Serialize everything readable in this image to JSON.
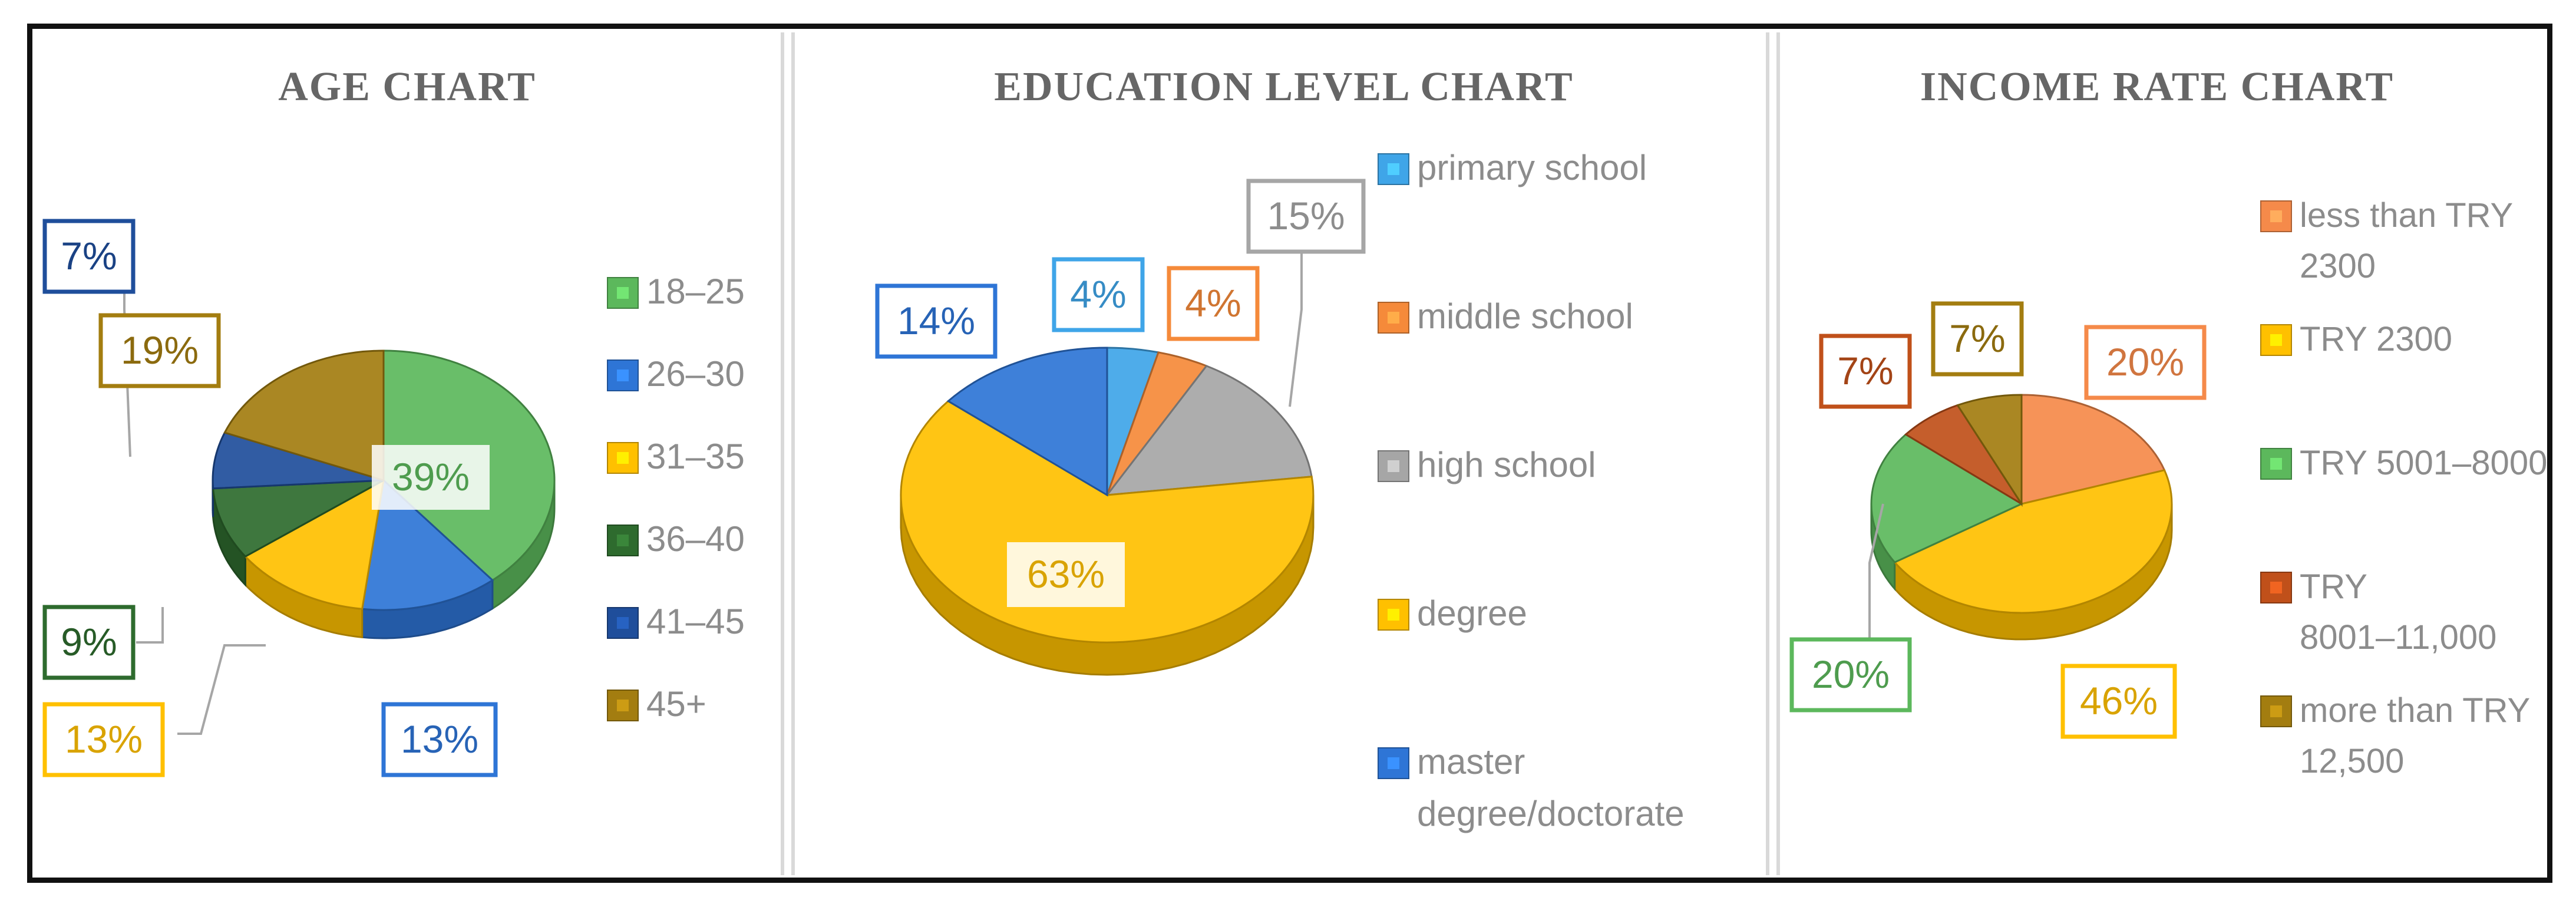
{
  "chart_data": [
    {
      "type": "pie",
      "title": "AGE CHART",
      "categories": [
        "18–25",
        "26–30",
        "31–35",
        "36–40",
        "41–45",
        "45+"
      ],
      "values": [
        39,
        13,
        13,
        9,
        7,
        19
      ],
      "labels": [
        "39%",
        "13%",
        "13%",
        "9%",
        "7%",
        "19%"
      ],
      "colors": [
        "#5cb85c",
        "#2e75d6",
        "#ffc000",
        "#2e6b2e",
        "#1f4e9b",
        "#a37d10"
      ],
      "legend_position": "right"
    },
    {
      "type": "pie",
      "title": "EDUCATION LEVEL CHART",
      "categories": [
        "primary school",
        "middle school",
        "high school",
        "degree",
        "master degree/doctorate"
      ],
      "values": [
        4,
        4,
        15,
        63,
        14
      ],
      "labels": [
        "4%",
        "4%",
        "15%",
        "63%",
        "14%"
      ],
      "colors": [
        "#3fa5e8",
        "#f58a3a",
        "#a6a6a6",
        "#ffc000",
        "#2e75d6"
      ],
      "legend_position": "right"
    },
    {
      "type": "pie",
      "title": "INCOME RATE CHART",
      "categories": [
        "less than TRY 2300",
        "TRY 2300",
        "TRY 5001–8000",
        "TRY 8001–11,000",
        "more than TRY 12,500"
      ],
      "values": [
        20,
        46,
        20,
        7,
        7
      ],
      "labels": [
        "20%",
        "46%",
        "20%",
        "7%",
        "7%"
      ],
      "colors": [
        "#f58a4a",
        "#ffc000",
        "#5cb85c",
        "#c0501a",
        "#a37d10"
      ],
      "legend_position": "right"
    }
  ]
}
